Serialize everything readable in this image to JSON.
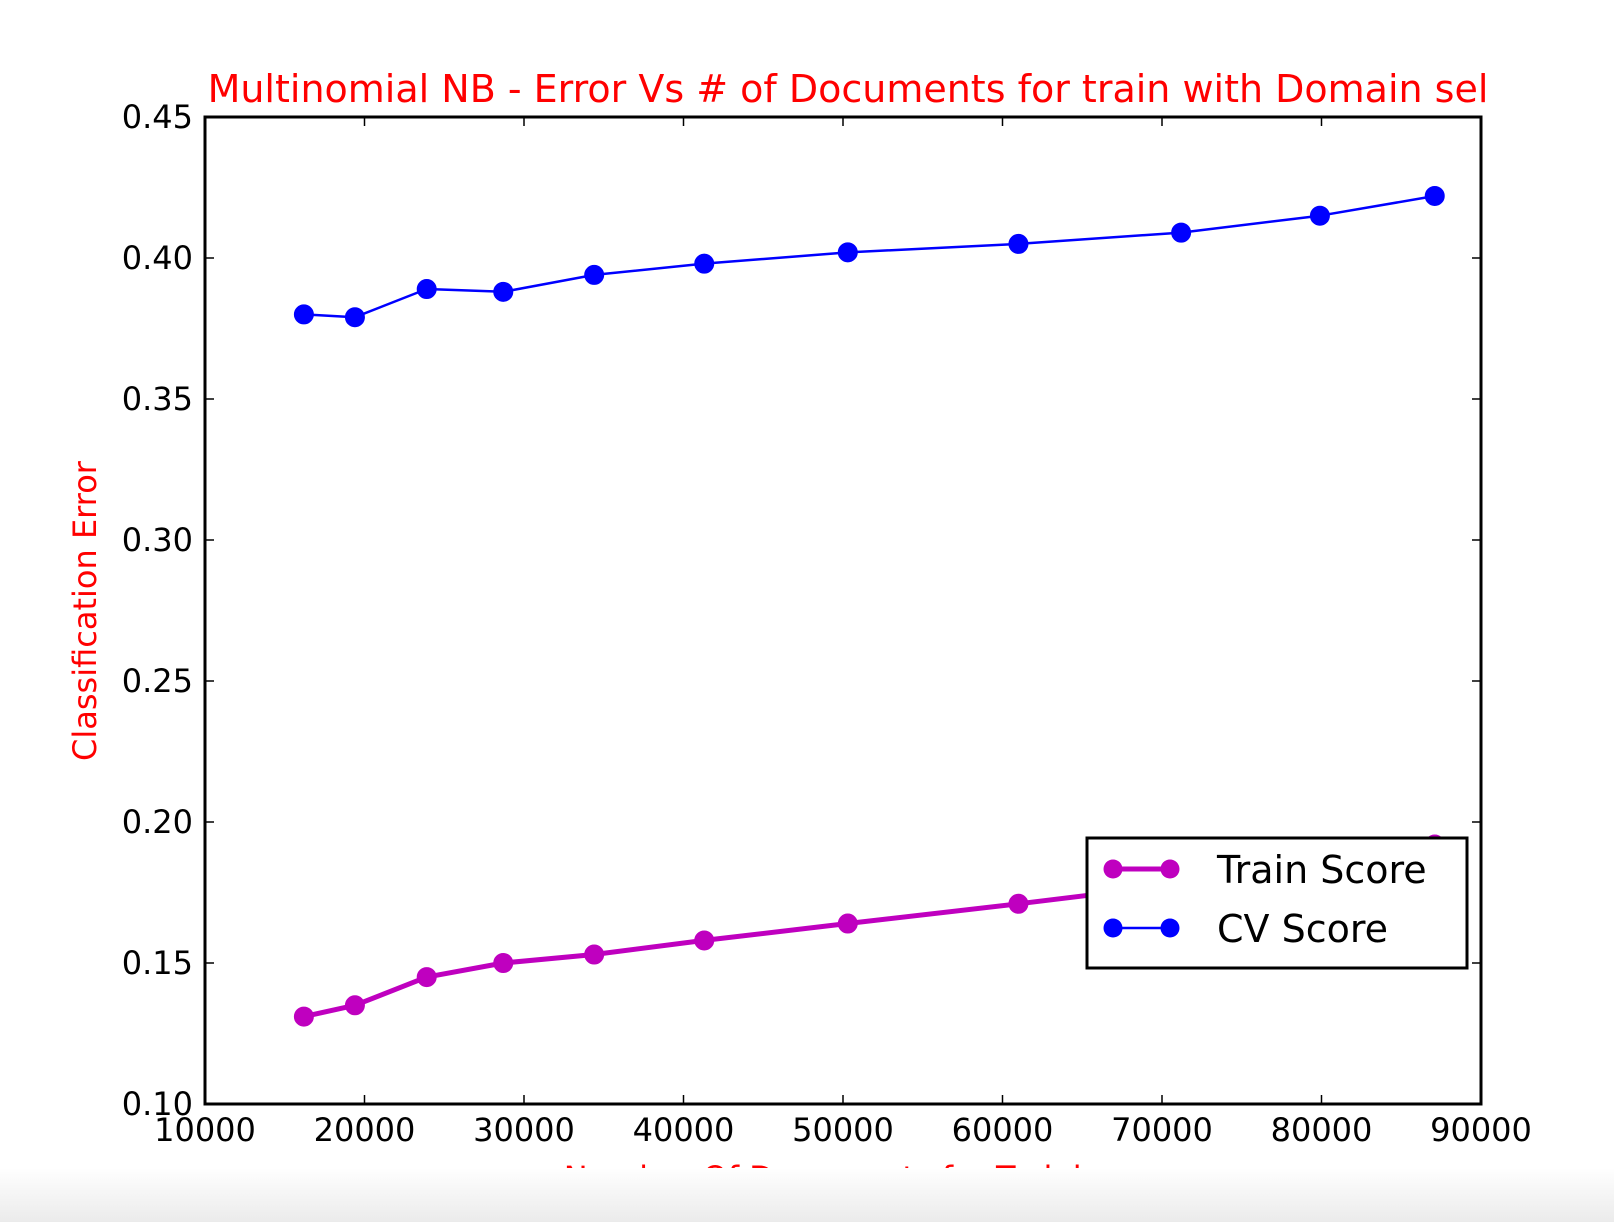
{
  "chart_data": {
    "type": "line",
    "title": "Multinomial NB - Error Vs # of Documents for train with Domain sel",
    "xlabel": "Number Of Documents for Training",
    "ylabel": "Classification Error",
    "xlim": [
      10000,
      90000
    ],
    "ylim": [
      0.1,
      0.45
    ],
    "xticks": [
      10000,
      20000,
      30000,
      40000,
      50000,
      60000,
      70000,
      80000,
      90000
    ],
    "xtick_labels": [
      "10000",
      "20000",
      "30000",
      "40000",
      "50000",
      "60000",
      "70000",
      "80000",
      "90000"
    ],
    "yticks": [
      0.1,
      0.15,
      0.2,
      0.25,
      0.3,
      0.35,
      0.4,
      0.45
    ],
    "ytick_labels": [
      "0.10",
      "0.15",
      "0.20",
      "0.25",
      "0.30",
      "0.35",
      "0.40",
      "0.45"
    ],
    "grid": false,
    "legend_position": "lower-right",
    "x": [
      16200,
      19400,
      23900,
      28700,
      34400,
      41300,
      50300,
      61000,
      71200,
      79900,
      87100
    ],
    "series": [
      {
        "name": "Train Score",
        "color": "#bf00bf",
        "values": [
          0.131,
          0.135,
          0.145,
          0.15,
          0.153,
          0.158,
          0.164,
          0.171,
          0.178,
          0.185,
          0.192
        ]
      },
      {
        "name": "CV Score",
        "color": "#0000ff",
        "values": [
          0.38,
          0.379,
          0.389,
          0.388,
          0.394,
          0.398,
          0.402,
          0.405,
          0.409,
          0.415,
          0.422
        ]
      }
    ],
    "label_color": "#ff0000"
  }
}
